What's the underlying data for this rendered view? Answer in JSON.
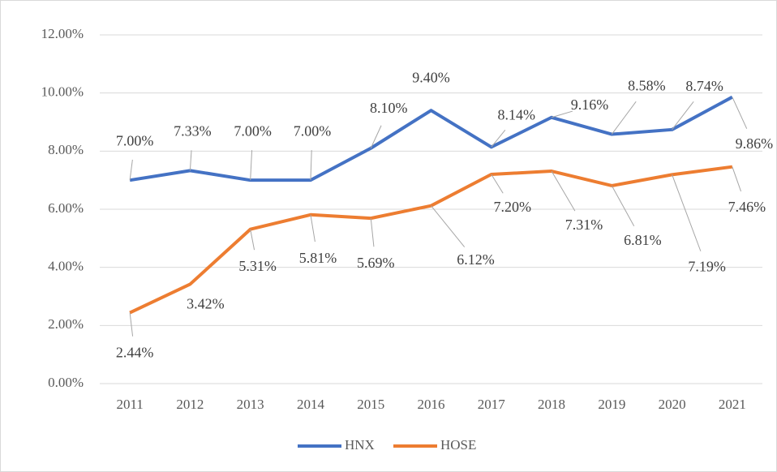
{
  "chart_data": {
    "type": "line",
    "categories": [
      "2011",
      "2012",
      "2013",
      "2014",
      "2015",
      "2016",
      "2017",
      "2018",
      "2019",
      "2020",
      "2021"
    ],
    "series": [
      {
        "name": "HNX",
        "color": "#4472c4",
        "values": [
          7.0,
          7.33,
          7.0,
          7.0,
          8.1,
          9.4,
          8.14,
          9.16,
          8.58,
          8.74,
          9.86
        ],
        "value_labels": [
          "7.00%",
          "7.33%",
          "7.00%",
          "7.00%",
          "8.10%",
          "9.40%",
          "8.14%",
          "9.16%",
          "8.58%",
          "8.74%",
          "9.86%"
        ]
      },
      {
        "name": "HOSE",
        "color": "#ed7d31",
        "values": [
          2.44,
          3.42,
          5.31,
          5.81,
          5.69,
          6.12,
          7.2,
          7.31,
          6.81,
          7.19,
          7.46
        ],
        "value_labels": [
          "2.44%",
          "3.42%",
          "5.31%",
          "5.81%",
          "5.69%",
          "6.12%",
          "7.20%",
          "7.31%",
          "6.81%",
          "7.19%",
          "7.46%"
        ]
      }
    ],
    "ylim": [
      0,
      12
    ],
    "yticks": [
      {
        "value": 0,
        "label": "0.00%"
      },
      {
        "value": 2,
        "label": "2.00%"
      },
      {
        "value": 4,
        "label": "4.00%"
      },
      {
        "value": 6,
        "label": "6.00%"
      },
      {
        "value": 8,
        "label": "8.00%"
      },
      {
        "value": 10,
        "label": "10.00%"
      },
      {
        "value": 12,
        "label": "12.00%"
      }
    ],
    "grid": true,
    "legend": "bottom"
  }
}
